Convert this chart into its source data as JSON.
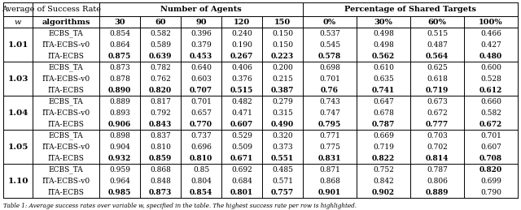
{
  "w_values": [
    "1.01",
    "1.03",
    "1.04",
    "1.05",
    "1.10"
  ],
  "algorithms": [
    "ECBS_TA",
    "ITA-ECBS-v0",
    "ITA-ECBS"
  ],
  "agent_headers": [
    "30",
    "60",
    "90",
    "120",
    "150"
  ],
  "pct_headers": [
    "0%",
    "30%",
    "60%",
    "100%"
  ],
  "data": {
    "1.01": {
      "ECBS_TA": {
        "agents": [
          "0.854",
          "0.582",
          "0.396",
          "0.240",
          "0.150"
        ],
        "pct": [
          "0.537",
          "0.498",
          "0.515",
          "0.466"
        ]
      },
      "ITA-ECBS-v0": {
        "agents": [
          "0.864",
          "0.589",
          "0.379",
          "0.190",
          "0.150"
        ],
        "pct": [
          "0.545",
          "0.498",
          "0.487",
          "0.427"
        ]
      },
      "ITA-ECBS": {
        "agents": [
          "0.875",
          "0.639",
          "0.453",
          "0.267",
          "0.223"
        ],
        "pct": [
          "0.578",
          "0.562",
          "0.564",
          "0.480"
        ]
      }
    },
    "1.03": {
      "ECBS_TA": {
        "agents": [
          "0.873",
          "0.782",
          "0.640",
          "0.406",
          "0.200"
        ],
        "pct": [
          "0.698",
          "0.610",
          "0.625",
          "0.600"
        ]
      },
      "ITA-ECBS-v0": {
        "agents": [
          "0.878",
          "0.762",
          "0.603",
          "0.376",
          "0.215"
        ],
        "pct": [
          "0.701",
          "0.635",
          "0.618",
          "0.528"
        ]
      },
      "ITA-ECBS": {
        "agents": [
          "0.890",
          "0.820",
          "0.707",
          "0.515",
          "0.387"
        ],
        "pct": [
          "0.76",
          "0.741",
          "0.719",
          "0.612"
        ]
      }
    },
    "1.04": {
      "ECBS_TA": {
        "agents": [
          "0.889",
          "0.817",
          "0.701",
          "0.482",
          "0.279"
        ],
        "pct": [
          "0.743",
          "0.647",
          "0.673",
          "0.660"
        ]
      },
      "ITA-ECBS-v0": {
        "agents": [
          "0.893",
          "0.792",
          "0.657",
          "0.471",
          "0.315"
        ],
        "pct": [
          "0.747",
          "0.678",
          "0.672",
          "0.582"
        ]
      },
      "ITA-ECBS": {
        "agents": [
          "0.906",
          "0.843",
          "0.770",
          "0.607",
          "0.490"
        ],
        "pct": [
          "0.795",
          "0.787",
          "0.777",
          "0.672"
        ]
      }
    },
    "1.05": {
      "ECBS_TA": {
        "agents": [
          "0.898",
          "0.837",
          "0.737",
          "0.529",
          "0.320"
        ],
        "pct": [
          "0.771",
          "0.669",
          "0.703",
          "0.701"
        ]
      },
      "ITA-ECBS-v0": {
        "agents": [
          "0.904",
          "0.810",
          "0.696",
          "0.509",
          "0.373"
        ],
        "pct": [
          "0.775",
          "0.719",
          "0.702",
          "0.607"
        ]
      },
      "ITA-ECBS": {
        "agents": [
          "0.932",
          "0.859",
          "0.810",
          "0.671",
          "0.551"
        ],
        "pct": [
          "0.831",
          "0.822",
          "0.814",
          "0.708"
        ]
      }
    },
    "1.10": {
      "ECBS_TA": {
        "agents": [
          "0.959",
          "0.868",
          "0.85",
          "0.692",
          "0.485"
        ],
        "pct": [
          "0.871",
          "0.752",
          "0.787",
          "0.820"
        ]
      },
      "ITA-ECBS-v0": {
        "agents": [
          "0.964",
          "0.848",
          "0.804",
          "0.684",
          "0.571"
        ],
        "pct": [
          "0.868",
          "0.842",
          "0.806",
          "0.699"
        ]
      },
      "ITA-ECBS": {
        "agents": [
          "0.985",
          "0.873",
          "0.854",
          "0.801",
          "0.757"
        ],
        "pct": [
          "0.901",
          "0.902",
          "0.889",
          "0.790"
        ]
      }
    }
  },
  "bold": {
    "1.01": {
      "ECBS_TA": {
        "agents": [
          false,
          false,
          false,
          false,
          false
        ],
        "pct": [
          false,
          false,
          false,
          false
        ]
      },
      "ITA-ECBS-v0": {
        "agents": [
          false,
          false,
          false,
          false,
          false
        ],
        "pct": [
          false,
          false,
          false,
          false
        ]
      },
      "ITA-ECBS": {
        "agents": [
          true,
          true,
          true,
          true,
          true
        ],
        "pct": [
          true,
          true,
          true,
          true
        ]
      }
    },
    "1.03": {
      "ECBS_TA": {
        "agents": [
          false,
          false,
          false,
          false,
          false
        ],
        "pct": [
          false,
          false,
          false,
          false
        ]
      },
      "ITA-ECBS-v0": {
        "agents": [
          false,
          false,
          false,
          false,
          false
        ],
        "pct": [
          false,
          false,
          false,
          false
        ]
      },
      "ITA-ECBS": {
        "agents": [
          true,
          true,
          true,
          true,
          true
        ],
        "pct": [
          true,
          true,
          true,
          true
        ]
      }
    },
    "1.04": {
      "ECBS_TA": {
        "agents": [
          false,
          false,
          false,
          false,
          false
        ],
        "pct": [
          false,
          false,
          false,
          false
        ]
      },
      "ITA-ECBS-v0": {
        "agents": [
          false,
          false,
          false,
          false,
          false
        ],
        "pct": [
          false,
          false,
          false,
          false
        ]
      },
      "ITA-ECBS": {
        "agents": [
          true,
          true,
          true,
          true,
          true
        ],
        "pct": [
          true,
          true,
          true,
          true
        ]
      }
    },
    "1.05": {
      "ECBS_TA": {
        "agents": [
          false,
          false,
          false,
          false,
          false
        ],
        "pct": [
          false,
          false,
          false,
          false
        ]
      },
      "ITA-ECBS-v0": {
        "agents": [
          false,
          false,
          false,
          false,
          false
        ],
        "pct": [
          false,
          false,
          false,
          false
        ]
      },
      "ITA-ECBS": {
        "agents": [
          true,
          true,
          true,
          true,
          true
        ],
        "pct": [
          true,
          true,
          true,
          true
        ]
      }
    },
    "1.10": {
      "ECBS_TA": {
        "agents": [
          false,
          false,
          false,
          false,
          false
        ],
        "pct": [
          false,
          false,
          false,
          true
        ]
      },
      "ITA-ECBS-v0": {
        "agents": [
          false,
          false,
          false,
          false,
          false
        ],
        "pct": [
          false,
          false,
          false,
          false
        ]
      },
      "ITA-ECBS": {
        "agents": [
          true,
          true,
          true,
          true,
          true
        ],
        "pct": [
          true,
          true,
          true,
          false
        ]
      }
    }
  },
  "caption": "Table 1: Average success rates over variable w, specified in the table. The highest success rate per row is highlighted.",
  "figsize": [
    6.4,
    2.59
  ],
  "dpi": 100
}
